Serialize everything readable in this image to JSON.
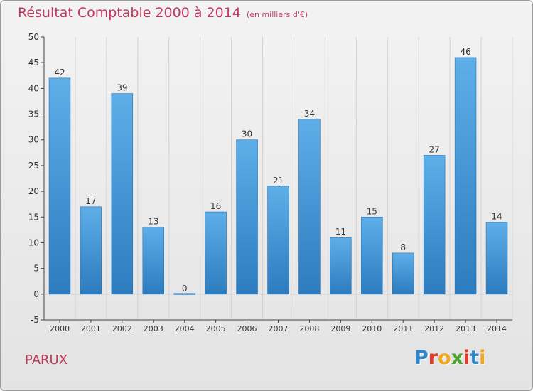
{
  "header": {
    "title": "Résultat Comptable 2000 à 2014",
    "subtitle": "(en milliers d'€)"
  },
  "footer": {
    "region": "PARUX",
    "logo_letters": [
      "P",
      "r",
      "o",
      "x",
      "i",
      "t",
      "i"
    ],
    "logo_colors": [
      "#2f86c8",
      "#e23b2e",
      "#f2a51a",
      "#4aa32d",
      "#e23b2e",
      "#2f86c8",
      "#f2a51a"
    ]
  },
  "chart_data": {
    "type": "bar",
    "title": "Résultat Comptable 2000 à 2014",
    "subtitle": "(en milliers d'€)",
    "categories": [
      "2000",
      "2001",
      "2002",
      "2003",
      "2004",
      "2005",
      "2006",
      "2007",
      "2008",
      "2009",
      "2010",
      "2011",
      "2012",
      "2013",
      "2014"
    ],
    "values": [
      42,
      17,
      39,
      13,
      0,
      16,
      30,
      21,
      34,
      11,
      15,
      8,
      27,
      46,
      14
    ],
    "yticks": [
      -5,
      0,
      5,
      10,
      15,
      20,
      25,
      30,
      35,
      40,
      45,
      50
    ],
    "ylim": [
      -5,
      50
    ],
    "grid": "vertical",
    "bar_color_top": "#5eaee9",
    "bar_color_bottom": "#2c7cbf"
  }
}
